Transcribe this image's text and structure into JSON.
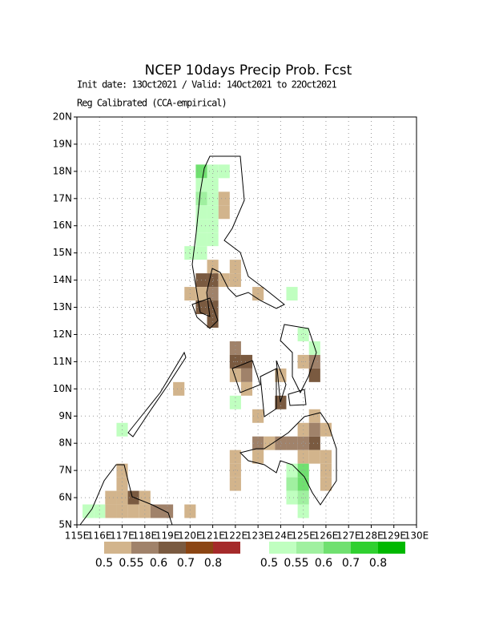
{
  "chart_data": {
    "type": "map",
    "title": "NCEP 10days Precip Prob. Fcst",
    "subtitle": [
      "Init date: 13Oct2021 / Valid: 14Oct2021 to 22Oct2021",
      "Reg Calibrated (CCA-empirical)"
    ],
    "xlim": [
      115,
      130
    ],
    "ylim": [
      5,
      20
    ],
    "xticks": [
      {
        "value": 115,
        "label": "115E"
      },
      {
        "value": 116,
        "label": "116E"
      },
      {
        "value": 117,
        "label": "117E"
      },
      {
        "value": 118,
        "label": "118E"
      },
      {
        "value": 119,
        "label": "119E"
      },
      {
        "value": 120,
        "label": "120E"
      },
      {
        "value": 121,
        "label": "121E"
      },
      {
        "value": 122,
        "label": "122E"
      },
      {
        "value": 123,
        "label": "123E"
      },
      {
        "value": 124,
        "label": "124E"
      },
      {
        "value": 125,
        "label": "125E"
      },
      {
        "value": 126,
        "label": "126E"
      },
      {
        "value": 127,
        "label": "127E"
      },
      {
        "value": 128,
        "label": "128E"
      },
      {
        "value": 129,
        "label": "129E"
      },
      {
        "value": 130,
        "label": "130E"
      }
    ],
    "yticks": [
      {
        "value": 5,
        "label": "5N"
      },
      {
        "value": 6,
        "label": "6N"
      },
      {
        "value": 7,
        "label": "7N"
      },
      {
        "value": 8,
        "label": "8N"
      },
      {
        "value": 9,
        "label": "9N"
      },
      {
        "value": 10,
        "label": "10N"
      },
      {
        "value": 11,
        "label": "11N"
      },
      {
        "value": 12,
        "label": "12N"
      },
      {
        "value": 13,
        "label": "13N"
      },
      {
        "value": 14,
        "label": "14N"
      },
      {
        "value": 15,
        "label": "15N"
      },
      {
        "value": 16,
        "label": "16N"
      },
      {
        "value": 17,
        "label": "17N"
      },
      {
        "value": 18,
        "label": "18N"
      },
      {
        "value": 19,
        "label": "19N"
      },
      {
        "value": 20,
        "label": "20N"
      }
    ],
    "grid": true,
    "below": {
      "levels": [
        0.5,
        0.55,
        0.6,
        0.7,
        0.8
      ],
      "colors": [
        "#d2b48c",
        "#a0826a",
        "#7a5a40",
        "#8b4513",
        "#a52a2a"
      ],
      "cells": [
        {
          "lon": 121.5,
          "lat": 16.5,
          "p": 0.5
        },
        {
          "lon": 121.5,
          "lat": 17.0,
          "p": 0.5
        },
        {
          "lon": 121.0,
          "lat": 14.5,
          "p": 0.5
        },
        {
          "lon": 122.0,
          "lat": 14.5,
          "p": 0.5
        },
        {
          "lon": 120.5,
          "lat": 14.0,
          "p": 0.6
        },
        {
          "lon": 121.0,
          "lat": 14.0,
          "p": 0.6
        },
        {
          "lon": 121.5,
          "lat": 14.0,
          "p": 0.5
        },
        {
          "lon": 122.0,
          "lat": 14.0,
          "p": 0.5
        },
        {
          "lon": 120.5,
          "lat": 13.5,
          "p": 0.5
        },
        {
          "lon": 121.0,
          "lat": 13.5,
          "p": 0.55
        },
        {
          "lon": 120.0,
          "lat": 13.5,
          "p": 0.5
        },
        {
          "lon": 123.0,
          "lat": 13.5,
          "p": 0.5
        },
        {
          "lon": 120.5,
          "lat": 13.0,
          "p": 0.6
        },
        {
          "lon": 121.0,
          "lat": 13.0,
          "p": 0.6
        },
        {
          "lon": 121.0,
          "lat": 12.5,
          "p": 0.6
        },
        {
          "lon": 122.0,
          "lat": 11.5,
          "p": 0.55
        },
        {
          "lon": 122.0,
          "lat": 11.0,
          "p": 0.6
        },
        {
          "lon": 122.5,
          "lat": 11.0,
          "p": 0.6
        },
        {
          "lon": 122.0,
          "lat": 10.5,
          "p": 0.5
        },
        {
          "lon": 122.5,
          "lat": 10.5,
          "p": 0.55
        },
        {
          "lon": 122.5,
          "lat": 10.0,
          "p": 0.5
        },
        {
          "lon": 124.0,
          "lat": 9.5,
          "p": 0.6
        },
        {
          "lon": 124.0,
          "lat": 10.5,
          "p": 0.5
        },
        {
          "lon": 125.0,
          "lat": 11.0,
          "p": 0.5
        },
        {
          "lon": 125.5,
          "lat": 11.0,
          "p": 0.55
        },
        {
          "lon": 125.5,
          "lat": 10.5,
          "p": 0.6
        },
        {
          "lon": 125.5,
          "lat": 9.0,
          "p": 0.5
        },
        {
          "lon": 123.0,
          "lat": 9.0,
          "p": 0.5
        },
        {
          "lon": 123.0,
          "lat": 8.0,
          "p": 0.55
        },
        {
          "lon": 123.5,
          "lat": 8.0,
          "p": 0.5
        },
        {
          "lon": 124.0,
          "lat": 8.0,
          "p": 0.55
        },
        {
          "lon": 124.5,
          "lat": 8.0,
          "p": 0.55
        },
        {
          "lon": 125.0,
          "lat": 8.0,
          "p": 0.55
        },
        {
          "lon": 125.5,
          "lat": 8.0,
          "p": 0.6
        },
        {
          "lon": 125.0,
          "lat": 8.5,
          "p": 0.5
        },
        {
          "lon": 125.5,
          "lat": 8.5,
          "p": 0.55
        },
        {
          "lon": 126.0,
          "lat": 8.5,
          "p": 0.5
        },
        {
          "lon": 125.0,
          "lat": 7.5,
          "p": 0.5
        },
        {
          "lon": 125.5,
          "lat": 7.5,
          "p": 0.5
        },
        {
          "lon": 126.0,
          "lat": 7.5,
          "p": 0.5
        },
        {
          "lon": 126.0,
          "lat": 7.0,
          "p": 0.5
        },
        {
          "lon": 126.0,
          "lat": 6.5,
          "p": 0.5
        },
        {
          "lon": 123.0,
          "lat": 7.5,
          "p": 0.5
        },
        {
          "lon": 122.0,
          "lat": 7.5,
          "p": 0.5
        },
        {
          "lon": 122.0,
          "lat": 7.0,
          "p": 0.5
        },
        {
          "lon": 122.0,
          "lat": 6.5,
          "p": 0.5
        },
        {
          "lon": 119.5,
          "lat": 10.0,
          "p": 0.5
        },
        {
          "lon": 117.0,
          "lat": 7.0,
          "p": 0.5
        },
        {
          "lon": 117.0,
          "lat": 6.5,
          "p": 0.5
        },
        {
          "lon": 116.5,
          "lat": 6.0,
          "p": 0.5
        },
        {
          "lon": 117.0,
          "lat": 6.0,
          "p": 0.5
        },
        {
          "lon": 117.5,
          "lat": 6.0,
          "p": 0.6
        },
        {
          "lon": 118.0,
          "lat": 6.0,
          "p": 0.5
        },
        {
          "lon": 116.5,
          "lat": 5.5,
          "p": 0.5
        },
        {
          "lon": 117.0,
          "lat": 5.5,
          "p": 0.5
        },
        {
          "lon": 117.5,
          "lat": 5.5,
          "p": 0.5
        },
        {
          "lon": 118.0,
          "lat": 5.5,
          "p": 0.5
        },
        {
          "lon": 118.5,
          "lat": 5.5,
          "p": 0.55
        },
        {
          "lon": 119.0,
          "lat": 5.5,
          "p": 0.55
        },
        {
          "lon": 120.0,
          "lat": 5.5,
          "p": 0.5
        }
      ]
    },
    "above": {
      "levels": [
        0.5,
        0.55,
        0.6,
        0.7,
        0.8
      ],
      "colors": [
        "#c0ffc0",
        "#a0f0a0",
        "#70e070",
        "#30d030",
        "#00b800"
      ],
      "cells": [
        {
          "lon": 120.5,
          "lat": 18.0,
          "p": 0.6
        },
        {
          "lon": 121.0,
          "lat": 18.0,
          "p": 0.5
        },
        {
          "lon": 121.5,
          "lat": 18.0,
          "p": 0.5
        },
        {
          "lon": 120.5,
          "lat": 17.5,
          "p": 0.5
        },
        {
          "lon": 121.0,
          "lat": 17.5,
          "p": 0.5
        },
        {
          "lon": 120.5,
          "lat": 17.0,
          "p": 0.55
        },
        {
          "lon": 121.0,
          "lat": 17.0,
          "p": 0.5
        },
        {
          "lon": 120.5,
          "lat": 16.5,
          "p": 0.5
        },
        {
          "lon": 121.0,
          "lat": 16.5,
          "p": 0.5
        },
        {
          "lon": 120.5,
          "lat": 16.0,
          "p": 0.5
        },
        {
          "lon": 121.0,
          "lat": 16.0,
          "p": 0.5
        },
        {
          "lon": 120.5,
          "lat": 15.5,
          "p": 0.5
        },
        {
          "lon": 121.0,
          "lat": 15.5,
          "p": 0.5
        },
        {
          "lon": 120.0,
          "lat": 15.0,
          "p": 0.5
        },
        {
          "lon": 120.5,
          "lat": 15.0,
          "p": 0.5
        },
        {
          "lon": 124.5,
          "lat": 13.5,
          "p": 0.5
        },
        {
          "lon": 125.0,
          "lat": 12.0,
          "p": 0.5
        },
        {
          "lon": 125.5,
          "lat": 11.5,
          "p": 0.5
        },
        {
          "lon": 122.0,
          "lat": 9.5,
          "p": 0.5
        },
        {
          "lon": 117.0,
          "lat": 8.5,
          "p": 0.5
        },
        {
          "lon": 124.5,
          "lat": 7.0,
          "p": 0.5
        },
        {
          "lon": 125.0,
          "lat": 7.0,
          "p": 0.6
        },
        {
          "lon": 124.5,
          "lat": 6.5,
          "p": 0.55
        },
        {
          "lon": 125.0,
          "lat": 6.5,
          "p": 0.6
        },
        {
          "lon": 124.5,
          "lat": 6.0,
          "p": 0.5
        },
        {
          "lon": 125.0,
          "lat": 6.0,
          "p": 0.55
        },
        {
          "lon": 125.0,
          "lat": 5.5,
          "p": 0.5
        },
        {
          "lon": 115.5,
          "lat": 5.5,
          "p": 0.5
        },
        {
          "lon": 116.0,
          "lat": 5.5,
          "p": 0.5
        }
      ]
    }
  }
}
